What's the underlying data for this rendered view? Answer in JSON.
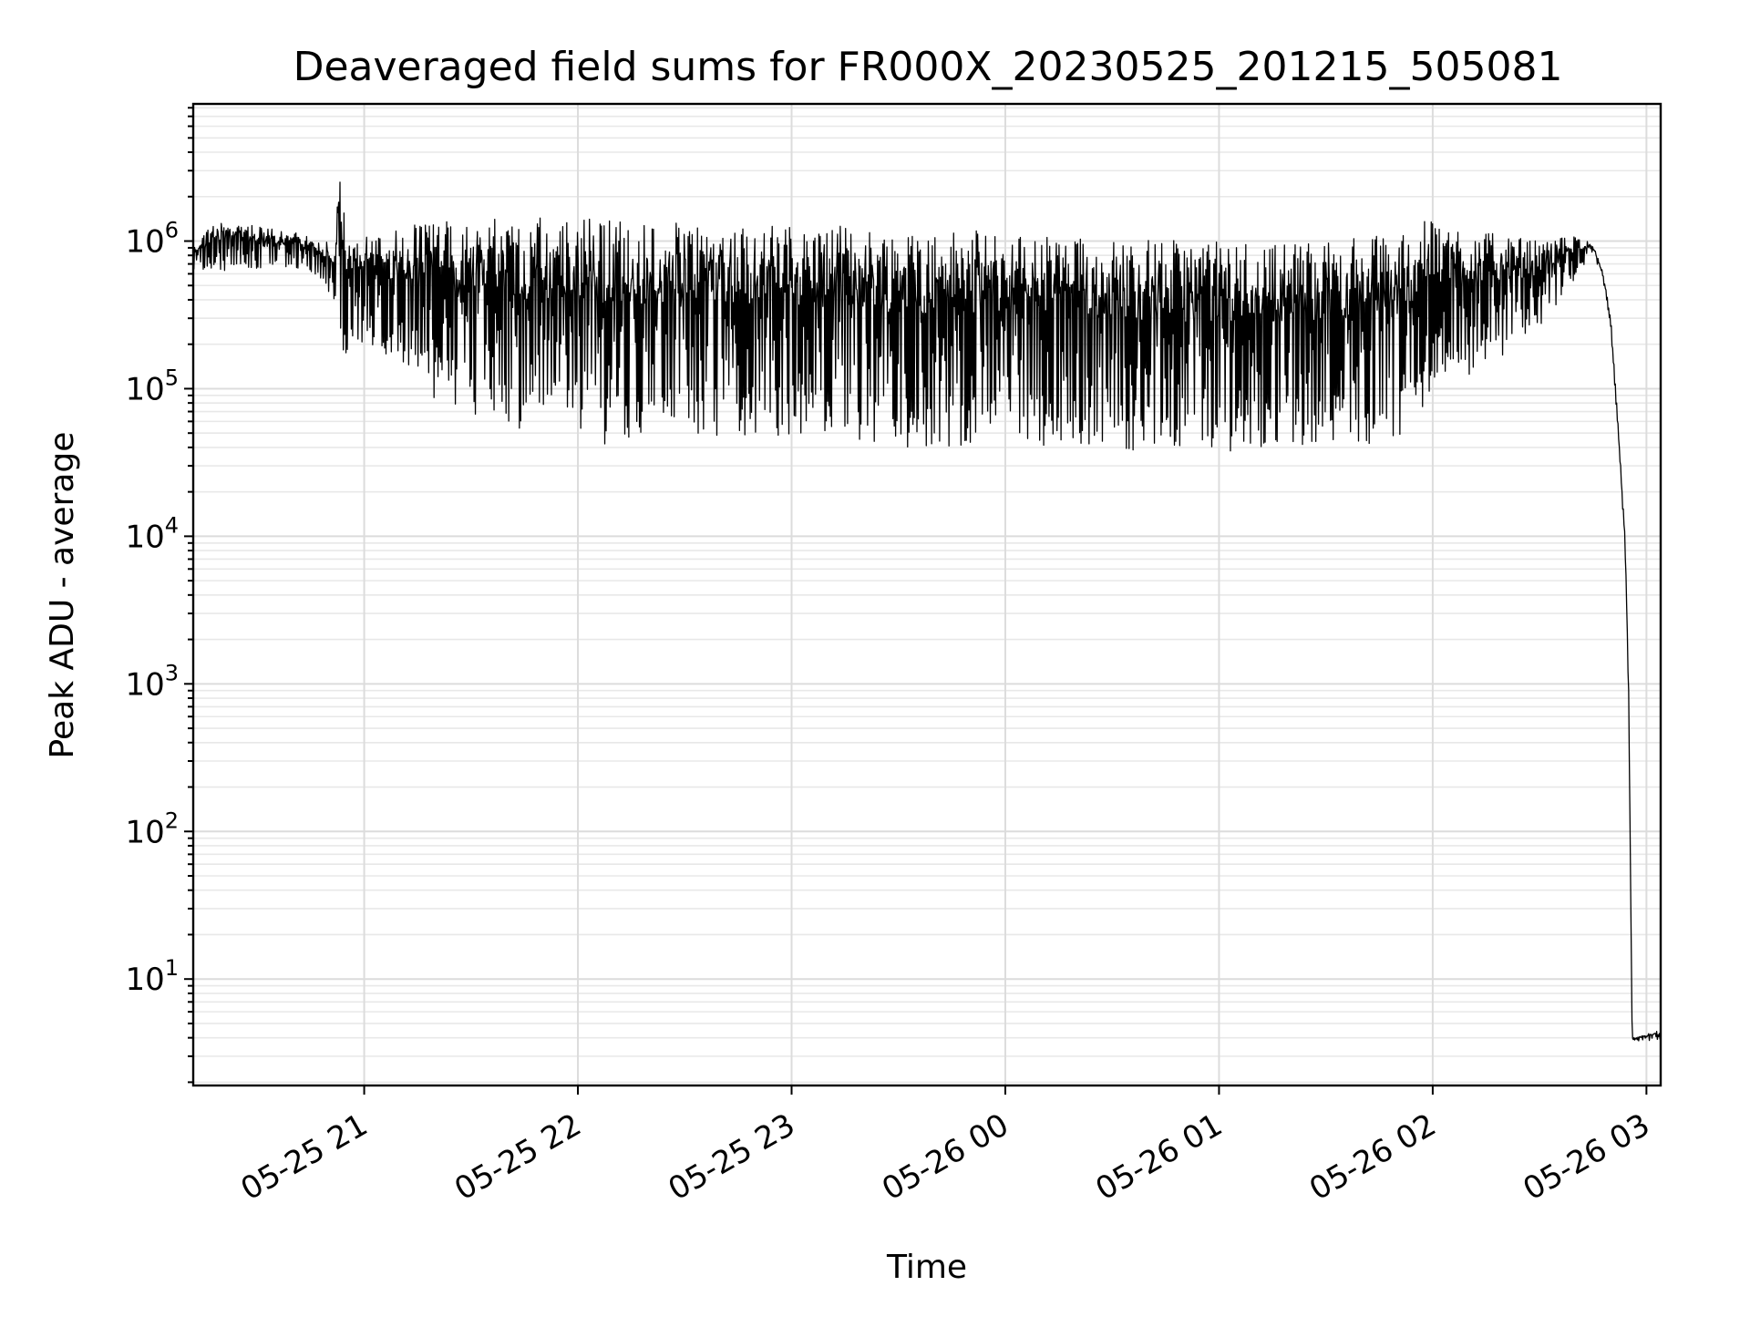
{
  "chart_data": {
    "type": "line",
    "title": "Deaveraged field sums for FR000X_20230525_201215_505081",
    "xlabel": "Time",
    "ylabel": "Peak ADU - average",
    "x_axis": {
      "kind": "datetime",
      "range": [
        "2023-05-25 20:12",
        "2023-05-26 03:04"
      ],
      "tick_values": [
        "2023-05-25 21:00",
        "2023-05-25 22:00",
        "2023-05-25 23:00",
        "2023-05-26 00:00",
        "2023-05-26 01:00",
        "2023-05-26 02:00",
        "2023-05-26 03:00"
      ],
      "tick_labels": [
        "05-25 21",
        "05-25 22",
        "05-25 23",
        "05-26 00",
        "05-26 01",
        "05-26 02",
        "05-26 03"
      ],
      "tick_label_rotation_deg": 30
    },
    "y_axis": {
      "scale": "log",
      "ylim": [
        1.9,
        8500000
      ],
      "tick_values": [
        10,
        100,
        1000,
        10000,
        100000,
        1000000
      ],
      "tick_labels": [
        {
          "base": "10",
          "exp": "1"
        },
        {
          "base": "10",
          "exp": "2"
        },
        {
          "base": "10",
          "exp": "3"
        },
        {
          "base": "10",
          "exp": "4"
        },
        {
          "base": "10",
          "exp": "5"
        },
        {
          "base": "10",
          "exp": "6"
        }
      ]
    },
    "grid": {
      "major": true,
      "minor": true
    },
    "series": [
      {
        "color": "#000000",
        "style": "thin line, rapid oscillation between the upper and lower envelopes",
        "upper_envelope": [
          {
            "x": "2023-05-25 20:12",
            "y": 1000000
          },
          {
            "x": "2023-05-25 20:20",
            "y": 1400000
          },
          {
            "x": "2023-05-25 20:35",
            "y": 1200000
          },
          {
            "x": "2023-05-25 20:45",
            "y": 1100000
          },
          {
            "x": "2023-05-25 20:52",
            "y": 950000
          },
          {
            "x": "2023-05-25 20:53",
            "y": 4500000
          },
          {
            "x": "2023-05-25 20:55",
            "y": 1000000
          },
          {
            "x": "2023-05-25 21:15",
            "y": 1300000
          },
          {
            "x": "2023-05-25 21:30",
            "y": 1450000
          },
          {
            "x": "2023-05-25 22:00",
            "y": 1450000
          },
          {
            "x": "2023-05-25 22:30",
            "y": 1400000
          },
          {
            "x": "2023-05-25 23:00",
            "y": 1300000
          },
          {
            "x": "2023-05-25 23:30",
            "y": 1250000
          },
          {
            "x": "2023-05-26 00:00",
            "y": 1150000
          },
          {
            "x": "2023-05-26 00:30",
            "y": 1050000
          },
          {
            "x": "2023-05-26 01:00",
            "y": 1000000
          },
          {
            "x": "2023-05-26 01:30",
            "y": 1000000
          },
          {
            "x": "2023-05-26 01:50",
            "y": 1150000
          },
          {
            "x": "2023-05-26 02:00",
            "y": 1450000
          },
          {
            "x": "2023-05-26 02:15",
            "y": 1150000
          },
          {
            "x": "2023-05-26 02:30",
            "y": 1000000
          },
          {
            "x": "2023-05-26 02:40",
            "y": 1100000
          },
          {
            "x": "2023-05-26 02:45",
            "y": 950000
          },
          {
            "x": "2023-05-26 02:48",
            "y": 600000
          },
          {
            "x": "2023-05-26 02:50",
            "y": 300000
          },
          {
            "x": "2023-05-26 02:52",
            "y": 60000
          },
          {
            "x": "2023-05-26 02:54",
            "y": 10000
          },
          {
            "x": "2023-05-26 02:55",
            "y": 1000
          },
          {
            "x": "2023-05-26 02:56",
            "y": 4
          },
          {
            "x": "2023-05-26 03:04",
            "y": 4.5
          }
        ],
        "lower_envelope": [
          {
            "x": "2023-05-25 20:12",
            "y": 600000
          },
          {
            "x": "2023-05-25 20:40",
            "y": 650000
          },
          {
            "x": "2023-05-25 20:48",
            "y": 550000
          },
          {
            "x": "2023-05-25 20:52",
            "y": 350000
          },
          {
            "x": "2023-05-25 20:53",
            "y": 120000
          },
          {
            "x": "2023-05-25 21:00",
            "y": 200000
          },
          {
            "x": "2023-05-25 21:20",
            "y": 80000
          },
          {
            "x": "2023-05-25 21:40",
            "y": 50000
          },
          {
            "x": "2023-05-25 22:00",
            "y": 50000
          },
          {
            "x": "2023-05-25 22:10",
            "y": 35000
          },
          {
            "x": "2023-05-25 22:30",
            "y": 45000
          },
          {
            "x": "2023-05-25 23:00",
            "y": 45000
          },
          {
            "x": "2023-05-25 23:35",
            "y": 35000
          },
          {
            "x": "2023-05-26 00:00",
            "y": 40000
          },
          {
            "x": "2023-05-26 00:40",
            "y": 35000
          },
          {
            "x": "2023-05-26 01:00",
            "y": 35000
          },
          {
            "x": "2023-05-26 01:30",
            "y": 38000
          },
          {
            "x": "2023-05-26 01:50",
            "y": 40000
          },
          {
            "x": "2023-05-26 02:00",
            "y": 80000
          },
          {
            "x": "2023-05-26 02:15",
            "y": 130000
          },
          {
            "x": "2023-05-26 02:30",
            "y": 250000
          },
          {
            "x": "2023-05-26 02:40",
            "y": 550000
          },
          {
            "x": "2023-05-26 02:45",
            "y": 850000
          },
          {
            "x": "2023-05-26 02:48",
            "y": 500000
          },
          {
            "x": "2023-05-26 02:50",
            "y": 250000
          },
          {
            "x": "2023-05-26 02:52",
            "y": 50000
          },
          {
            "x": "2023-05-26 02:54",
            "y": 8000
          },
          {
            "x": "2023-05-26 02:55",
            "y": 800
          },
          {
            "x": "2023-05-26 02:56",
            "y": 3.8
          },
          {
            "x": "2023-05-26 03:04",
            "y": 3.8
          }
        ]
      }
    ]
  }
}
